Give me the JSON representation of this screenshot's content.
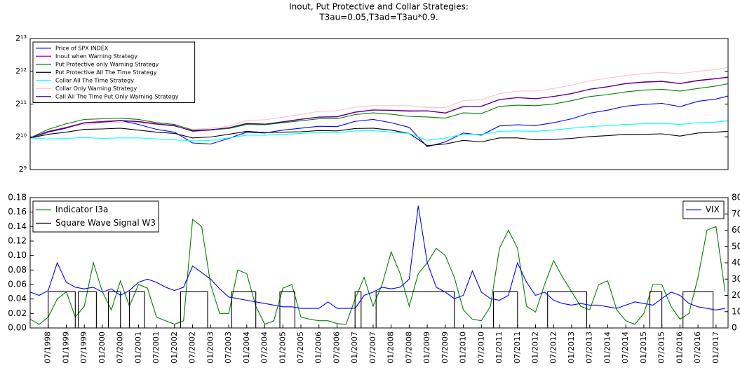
{
  "chart_data": [
    {
      "type": "line",
      "title": [
        "Inout, Put Protective and Collar Strategies:",
        "T3au=0.05,T3ad=T3au*0.9."
      ],
      "yscale": "log",
      "logbase": 2,
      "ylim": [
        512,
        8192
      ],
      "yticks": [
        {
          "value": 512,
          "label": "2⁹"
        },
        {
          "value": 1024,
          "label": "2¹⁰"
        },
        {
          "value": 2048,
          "label": "2¹¹"
        },
        {
          "value": 4096,
          "label": "2¹²"
        },
        {
          "value": 8192,
          "label": "2¹³"
        }
      ],
      "xlim": [
        "01/1998",
        "05/2017"
      ],
      "legend": "upper left",
      "x": [
        "01/1998",
        "07/1998",
        "01/1999",
        "07/1999",
        "01/2000",
        "07/2000",
        "01/2001",
        "07/2001",
        "01/2002",
        "07/2002",
        "01/2003",
        "07/2003",
        "01/2004",
        "07/2004",
        "01/2005",
        "07/2005",
        "01/2006",
        "07/2006",
        "01/2007",
        "07/2007",
        "01/2008",
        "07/2008",
        "01/2009",
        "07/2009",
        "01/2010",
        "07/2010",
        "01/2011",
        "07/2011",
        "01/2012",
        "07/2012",
        "01/2013",
        "07/2013",
        "01/2014",
        "07/2014",
        "01/2015",
        "07/2015",
        "01/2016",
        "07/2016",
        "01/2017",
        "05/2017"
      ],
      "series": [
        {
          "name": "Collar Only Warning Strategy",
          "color": "#ffc0cb",
          "values": [
            1000,
            1150,
            1250,
            1330,
            1370,
            1400,
            1380,
            1330,
            1310,
            1200,
            1230,
            1280,
            1450,
            1470,
            1550,
            1650,
            1750,
            1780,
            1920,
            1980,
            1980,
            1980,
            1900,
            1900,
            2200,
            2250,
            2550,
            2700,
            2700,
            2850,
            3050,
            3350,
            3550,
            3750,
            3900,
            4000,
            3900,
            4100,
            4250,
            4450
          ]
        },
        {
          "name": "Price of SPX INDEX",
          "color": "#0000ff",
          "values": [
            1000,
            1130,
            1230,
            1380,
            1400,
            1450,
            1330,
            1200,
            1130,
            900,
            880,
            990,
            1130,
            1110,
            1180,
            1230,
            1280,
            1270,
            1420,
            1480,
            1380,
            1250,
            830,
            920,
            1110,
            1060,
            1290,
            1320,
            1300,
            1380,
            1500,
            1690,
            1800,
            1960,
            2030,
            2080,
            1940,
            2170,
            2280,
            2430
          ]
        },
        {
          "name": "Inout when Warning Strategy",
          "color": "#b000b0",
          "values": [
            1000,
            1150,
            1250,
            1380,
            1420,
            1450,
            1420,
            1350,
            1300,
            1150,
            1180,
            1230,
            1350,
            1330,
            1400,
            1480,
            1550,
            1560,
            1720,
            1800,
            1800,
            1780,
            1780,
            1700,
            1950,
            1950,
            2250,
            2350,
            2300,
            2400,
            2550,
            2800,
            2950,
            3150,
            3250,
            3300,
            3150,
            3350,
            3500,
            3600
          ]
        },
        {
          "name": "Put Protective only Warning Strategy",
          "color": "#008000",
          "values": [
            1000,
            1200,
            1350,
            1480,
            1500,
            1520,
            1480,
            1380,
            1330,
            1180,
            1190,
            1220,
            1330,
            1320,
            1380,
            1440,
            1500,
            1500,
            1640,
            1700,
            1650,
            1580,
            1560,
            1520,
            1700,
            1680,
            1950,
            2000,
            1980,
            2050,
            2200,
            2400,
            2500,
            2650,
            2750,
            2800,
            2700,
            2850,
            3000,
            3150
          ]
        },
        {
          "name": "Put Protective All The Time Strategy",
          "color": "#000000",
          "values": [
            1000,
            1080,
            1130,
            1200,
            1210,
            1230,
            1180,
            1130,
            1100,
            1000,
            1020,
            1080,
            1150,
            1120,
            1130,
            1140,
            1170,
            1160,
            1220,
            1230,
            1180,
            1100,
            850,
            880,
            950,
            920,
            1000,
            1000,
            960,
            970,
            990,
            1030,
            1050,
            1080,
            1080,
            1090,
            1040,
            1110,
            1130,
            1150
          ]
        },
        {
          "name": "Collar All The Time Strategy",
          "color": "#00ffff",
          "values": [
            1000,
            980,
            990,
            1010,
            990,
            1000,
            1000,
            980,
            960,
            940,
            950,
            1000,
            1060,
            1060,
            1080,
            1100,
            1120,
            1120,
            1160,
            1170,
            1130,
            1100,
            950,
            1000,
            1080,
            1080,
            1150,
            1160,
            1150,
            1180,
            1230,
            1270,
            1300,
            1330,
            1350,
            1360,
            1330,
            1380,
            1400,
            1440
          ]
        },
        {
          "name": "Call All The Time Put Only Warning Strategy",
          "color": "#4b0082",
          "values": [
            1000,
            1140,
            1240,
            1370,
            1400,
            1440,
            1410,
            1340,
            1290,
            1160,
            1190,
            1240,
            1360,
            1340,
            1410,
            1490,
            1560,
            1570,
            1730,
            1810,
            1790,
            1760,
            1770,
            1690,
            1940,
            1960,
            2260,
            2340,
            2290,
            2410,
            2560,
            2810,
            2960,
            3170,
            3270,
            3320,
            3170,
            3380,
            3520,
            3620
          ]
        }
      ]
    },
    {
      "type": "line",
      "ylim": [
        0,
        0.18
      ],
      "yticks": [
        {
          "value": 0,
          "label": "0.00"
        },
        {
          "value": 0.02,
          "label": "0.02"
        },
        {
          "value": 0.04,
          "label": "0.04"
        },
        {
          "value": 0.06,
          "label": "0.06"
        },
        {
          "value": 0.08,
          "label": "0.08"
        },
        {
          "value": 0.1,
          "label": "0.10"
        },
        {
          "value": 0.12,
          "label": "0.12"
        },
        {
          "value": 0.14,
          "label": "0.14"
        },
        {
          "value": 0.16,
          "label": "0.16"
        },
        {
          "value": 0.18,
          "label": "0.18"
        }
      ],
      "y2lim": [
        0,
        80
      ],
      "y2ticks": [
        0,
        10,
        20,
        30,
        40,
        50,
        60,
        70,
        80
      ],
      "xlim": [
        "01/1998",
        "05/2017"
      ],
      "xticks": [
        "07/1998",
        "01/1999",
        "07/1999",
        "01/2000",
        "07/2000",
        "01/2001",
        "07/2001",
        "01/2002",
        "07/2002",
        "01/2003",
        "07/2003",
        "01/2004",
        "07/2004",
        "01/2005",
        "07/2005",
        "01/2006",
        "07/2006",
        "01/2007",
        "07/2007",
        "01/2008",
        "07/2008",
        "01/2009",
        "07/2009",
        "01/2010",
        "07/2010",
        "01/2011",
        "07/2011",
        "01/2012",
        "07/2012",
        "01/2013",
        "07/2013",
        "01/2014",
        "07/2014",
        "01/2015",
        "07/2015",
        "01/2016",
        "07/2016",
        "01/2017"
      ],
      "legend": "upper left",
      "legend2": "upper right",
      "x": [
        "01/1998",
        "04/1998",
        "07/1998",
        "10/1998",
        "01/1999",
        "04/1999",
        "07/1999",
        "10/1999",
        "01/2000",
        "04/2000",
        "07/2000",
        "10/2000",
        "01/2001",
        "04/2001",
        "07/2001",
        "10/2001",
        "01/2002",
        "04/2002",
        "07/2002",
        "10/2002",
        "01/2003",
        "04/2003",
        "07/2003",
        "10/2003",
        "01/2004",
        "04/2004",
        "07/2004",
        "10/2004",
        "01/2005",
        "04/2005",
        "07/2005",
        "10/2005",
        "01/2006",
        "04/2006",
        "07/2006",
        "10/2006",
        "01/2007",
        "04/2007",
        "07/2007",
        "10/2007",
        "01/2008",
        "04/2008",
        "07/2008",
        "10/2008",
        "01/2009",
        "04/2009",
        "07/2009",
        "10/2009",
        "01/2010",
        "04/2010",
        "07/2010",
        "10/2010",
        "01/2011",
        "04/2011",
        "07/2011",
        "10/2011",
        "01/2012",
        "04/2012",
        "07/2012",
        "10/2012",
        "01/2013",
        "04/2013",
        "07/2013",
        "10/2013",
        "01/2014",
        "04/2014",
        "07/2014",
        "10/2014",
        "01/2015",
        "04/2015",
        "07/2015",
        "10/2015",
        "01/2016",
        "04/2016",
        "07/2016",
        "10/2016",
        "01/2017",
        "04/2017"
      ],
      "series": [
        {
          "name": "Indicator I3a",
          "color": "#008000",
          "values": [
            0.012,
            0.005,
            0.015,
            0.04,
            0.05,
            0.015,
            0.03,
            0.09,
            0.05,
            0.025,
            0.065,
            0.03,
            0.06,
            0.055,
            0.015,
            0.01,
            0.005,
            0.01,
            0.15,
            0.14,
            0.06,
            0.02,
            0.02,
            0.08,
            0.075,
            0.03,
            0.005,
            0.01,
            0.055,
            0.06,
            0.015,
            0.012,
            0.01,
            0.01,
            0.006,
            0.005,
            0.04,
            0.07,
            0.03,
            0.06,
            0.105,
            0.075,
            0.03,
            0.075,
            0.09,
            0.11,
            0.1,
            0.07,
            0.025,
            0.012,
            0.01,
            0.03,
            0.11,
            0.135,
            0.11,
            0.03,
            0.022,
            0.06,
            0.093,
            0.07,
            0.05,
            0.03,
            0.025,
            0.06,
            0.065,
            0.025,
            0.01,
            0.005,
            0.02,
            0.06,
            0.06,
            0.03,
            0.012,
            0.02,
            0.07,
            0.135,
            0.14,
            0.05
          ]
        },
        {
          "name": "Square Wave Signal W3",
          "color": "#000000",
          "x": [
            "01/1998",
            "07/1998",
            "07/1998",
            "04/1999",
            "04/1999",
            "05/1999",
            "05/1999",
            "11/1999",
            "11/1999",
            "03/2000",
            "03/2000",
            "07/2000",
            "07/2000",
            "10/2000",
            "10/2000",
            "03/2001",
            "03/2001",
            "03/2002",
            "03/2002",
            "12/2002",
            "12/2002",
            "08/2003",
            "08/2003",
            "04/2004",
            "04/2004",
            "12/2004",
            "12/2004",
            "05/2005",
            "05/2005",
            "01/2007",
            "01/2007",
            "03/2007",
            "03/2007",
            "08/2007",
            "08/2007",
            "10/2009",
            "10/2009",
            "11/2010",
            "11/2010",
            "07/2011",
            "07/2011",
            "05/2012",
            "05/2012",
            "06/2013",
            "06/2013",
            "03/2015",
            "03/2015",
            "07/2015",
            "07/2015",
            "02/2016",
            "02/2016",
            "12/2016",
            "12/2016",
            "05/2017"
          ],
          "values": [
            0,
            0,
            0.05,
            0.05,
            0,
            0,
            0.05,
            0.05,
            0,
            0,
            0.05,
            0.05,
            0,
            0,
            0.05,
            0.05,
            0,
            0,
            0.05,
            0.05,
            0,
            0,
            0.05,
            0.05,
            0,
            0,
            0.05,
            0.05,
            0,
            0,
            0.05,
            0.05,
            0,
            0,
            0.05,
            0.05,
            0,
            0,
            0.05,
            0.05,
            0,
            0,
            0.05,
            0.05,
            0,
            0,
            0.05,
            0.05,
            0,
            0,
            0.05,
            0.05,
            0,
            0
          ]
        },
        {
          "name": "VIX",
          "color": "#0000ff",
          "axis": "y2",
          "values": [
            22,
            20,
            23,
            40,
            28,
            25,
            24,
            25,
            22,
            24,
            20,
            23,
            28,
            30,
            28,
            25,
            23,
            25,
            38,
            34,
            30,
            24,
            19,
            18,
            17,
            16,
            15,
            14,
            13,
            13,
            12,
            12,
            12,
            16,
            12,
            12,
            12,
            20,
            22,
            25,
            24,
            25,
            30,
            75,
            40,
            25,
            22,
            18,
            20,
            35,
            22,
            18,
            17,
            20,
            40,
            28,
            20,
            22,
            17,
            15,
            14,
            15,
            14,
            14,
            13,
            12,
            14,
            16,
            15,
            14,
            18,
            22,
            20,
            15,
            13,
            12,
            11,
            12
          ]
        }
      ]
    }
  ]
}
